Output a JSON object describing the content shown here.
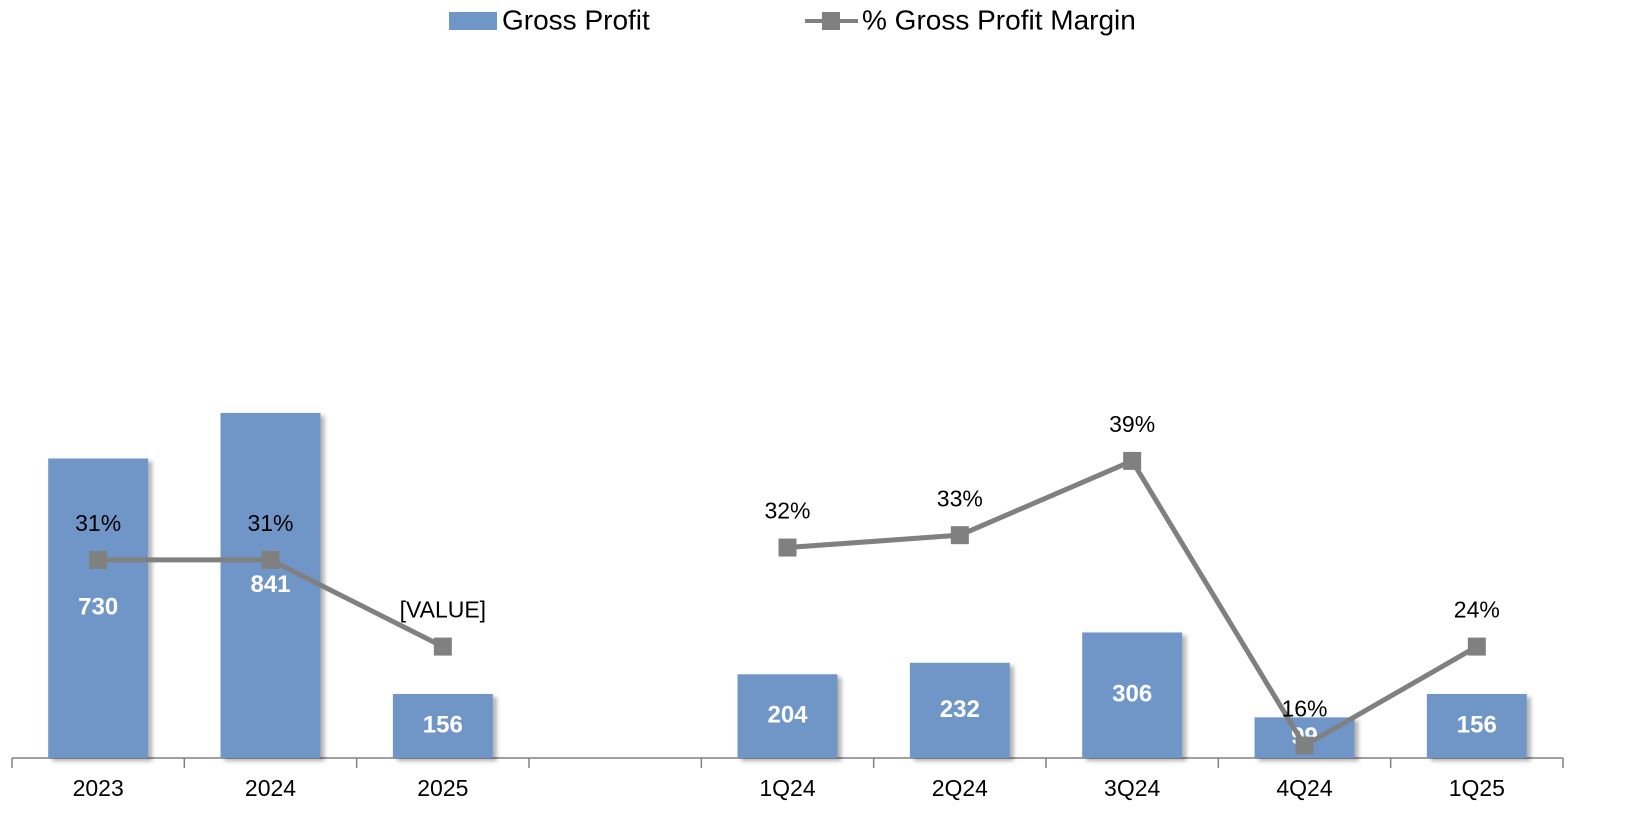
{
  "chart_data": {
    "type": "bar",
    "categories": [
      "2023",
      "2024",
      "2025",
      null,
      "1Q24",
      "2Q24",
      "3Q24",
      "4Q24",
      "1Q25"
    ],
    "series": [
      {
        "name": "Gross Profit",
        "type": "bar",
        "color": "#7096c8",
        "values": [
          730,
          841,
          156,
          null,
          204,
          232,
          306,
          99,
          156
        ]
      },
      {
        "name": "% Gross Profit Margin",
        "type": "line",
        "axis": "y2",
        "color": "#808080",
        "values": [
          31,
          31,
          24,
          null,
          32,
          33,
          39,
          16,
          24
        ],
        "value_labels": [
          "31%",
          "31%",
          "[VALUE]",
          null,
          "32%",
          "33%",
          "39%",
          "16%",
          "24%"
        ]
      }
    ],
    "ylim": [
      0,
      1750
    ],
    "y2lim": [
      15,
      73
    ],
    "legend": "top"
  }
}
